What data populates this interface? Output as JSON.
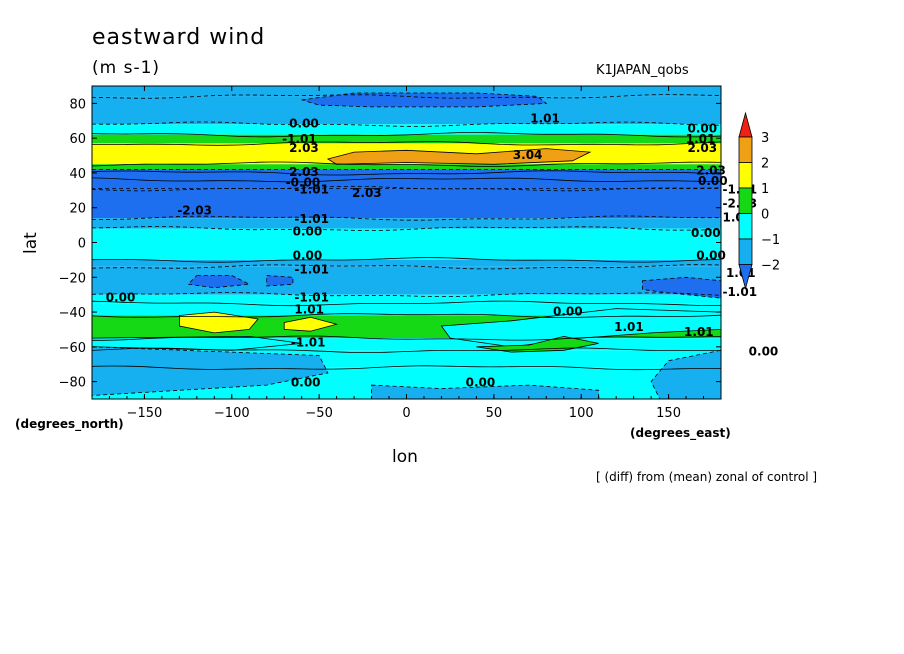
{
  "chart_data": {
    "type": "heatmap",
    "title": "eastward wind",
    "units": "(m s-1)",
    "experiment": "K1JAPAN_qobs",
    "xlabel": "lon",
    "ylabel": "lat",
    "x_units": "(degrees_east)",
    "y_units": "(degrees_north)",
    "footnote": "[ (diff) from (mean) zonal of control ]",
    "xlim": [
      -180,
      180
    ],
    "ylim": [
      -90,
      90
    ],
    "x_ticks": [
      -150,
      -100,
      -50,
      0,
      50,
      100,
      150
    ],
    "x_tick_labels": [
      "−150",
      "−100",
      "−50",
      "0",
      "50",
      "100",
      "150"
    ],
    "y_ticks": [
      80,
      60,
      40,
      20,
      0,
      -20,
      -40,
      -60,
      -80
    ],
    "y_tick_labels": [
      "80",
      "60",
      "40",
      "20",
      "0",
      "−20",
      "−40",
      "−60",
      "−80"
    ],
    "colorbar": {
      "levels": [
        -3,
        -2,
        -1,
        0,
        1,
        2,
        3
      ],
      "tick_labels": [
        "3",
        "2",
        "1",
        "0",
        "−1",
        "−2"
      ],
      "colors": [
        "#1e6ff0",
        "#16aff0",
        "#00ffff",
        "#15d915",
        "#ffff00",
        "#f0a014",
        "#f02014"
      ]
    },
    "zonal_bands": [
      {
        "lat_from": 84,
        "lat_to": 90,
        "level": -1
      },
      {
        "lat_from": 68,
        "lat_to": 84,
        "level": -1
      },
      {
        "lat_from": 62,
        "lat_to": 68,
        "level": 0
      },
      {
        "lat_from": 57,
        "lat_to": 62,
        "level": 1
      },
      {
        "lat_from": 45,
        "lat_to": 57,
        "level": 2
      },
      {
        "lat_from": 40,
        "lat_to": 45,
        "level": 1
      },
      {
        "lat_from": 36,
        "lat_to": 40,
        "level": 0
      },
      {
        "lat_from": 31,
        "lat_to": 36,
        "level": -1
      },
      {
        "lat_from": 14,
        "lat_to": 31,
        "level": -2
      },
      {
        "lat_from": 8,
        "lat_to": 14,
        "level": -1
      },
      {
        "lat_from": -10,
        "lat_to": 8,
        "level": 0
      },
      {
        "lat_from": -14,
        "lat_to": -10,
        "level": -1
      },
      {
        "lat_from": -30,
        "lat_to": -14,
        "level": -1
      },
      {
        "lat_from": -35,
        "lat_to": -30,
        "level": 0
      },
      {
        "lat_from": -42,
        "lat_to": -35,
        "level": 0
      },
      {
        "lat_from": -55,
        "lat_to": -42,
        "level": 1
      },
      {
        "lat_from": -62,
        "lat_to": -55,
        "level": 0
      },
      {
        "lat_from": -72,
        "lat_to": -62,
        "level": 0
      },
      {
        "lat_from": -90,
        "lat_to": -72,
        "level": 0
      }
    ],
    "regions": [
      {
        "level": -2,
        "points": [
          [
            -180,
            42
          ],
          [
            180,
            42
          ],
          [
            180,
            31
          ],
          [
            -180,
            31
          ]
        ]
      },
      {
        "level": -2,
        "points": [
          [
            -60,
            82
          ],
          [
            -30,
            86
          ],
          [
            40,
            86
          ],
          [
            75,
            84
          ],
          [
            80,
            80
          ],
          [
            40,
            78
          ],
          [
            -20,
            78
          ],
          [
            -50,
            79
          ]
        ]
      },
      {
        "level": 3,
        "points": [
          [
            -45,
            48
          ],
          [
            -30,
            52
          ],
          [
            0,
            53
          ],
          [
            40,
            51
          ],
          [
            80,
            54
          ],
          [
            105,
            52
          ],
          [
            95,
            47
          ],
          [
            50,
            45
          ],
          [
            0,
            46
          ],
          [
            -40,
            45
          ]
        ]
      },
      {
        "level": 2,
        "points": [
          [
            -130,
            -42
          ],
          [
            -110,
            -40
          ],
          [
            -85,
            -44
          ],
          [
            -90,
            -50
          ],
          [
            -110,
            -52
          ],
          [
            -130,
            -48
          ]
        ]
      },
      {
        "level": 2,
        "points": [
          [
            -70,
            -46
          ],
          [
            -55,
            -43
          ],
          [
            -40,
            -47
          ],
          [
            -55,
            -51
          ],
          [
            -70,
            -50
          ]
        ]
      },
      {
        "level": -2,
        "points": [
          [
            -120,
            -19
          ],
          [
            -100,
            -19
          ],
          [
            -90,
            -24
          ],
          [
            -110,
            -26
          ],
          [
            -125,
            -24
          ]
        ]
      },
      {
        "level": -2,
        "points": [
          [
            -80,
            -19
          ],
          [
            -65,
            -20
          ],
          [
            -65,
            -24
          ],
          [
            -80,
            -25
          ]
        ]
      },
      {
        "level": -2,
        "points": [
          [
            135,
            -22
          ],
          [
            160,
            -20
          ],
          [
            180,
            -22
          ],
          [
            180,
            -32
          ],
          [
            150,
            -29
          ],
          [
            135,
            -27
          ]
        ]
      },
      {
        "level": 0,
        "points": [
          [
            20,
            -48
          ],
          [
            60,
            -45
          ],
          [
            120,
            -38
          ],
          [
            180,
            -40
          ],
          [
            180,
            -50
          ],
          [
            140,
            -52
          ],
          [
            100,
            -55
          ],
          [
            60,
            -60
          ],
          [
            25,
            -55
          ]
        ]
      },
      {
        "level": 0,
        "points": [
          [
            -180,
            -55
          ],
          [
            -90,
            -54
          ],
          [
            -60,
            -58
          ],
          [
            -100,
            -62
          ],
          [
            -180,
            -60
          ]
        ]
      },
      {
        "level": 1,
        "points": [
          [
            40,
            -60
          ],
          [
            70,
            -59
          ],
          [
            90,
            -54
          ],
          [
            110,
            -58
          ],
          [
            90,
            -62
          ],
          [
            60,
            -63
          ]
        ]
      },
      {
        "level": -1,
        "points": [
          [
            -180,
            -60
          ],
          [
            -50,
            -65
          ],
          [
            -45,
            -75
          ],
          [
            -80,
            -82
          ],
          [
            -180,
            -88
          ]
        ]
      },
      {
        "level": -1,
        "points": [
          [
            150,
            -68
          ],
          [
            180,
            -62
          ],
          [
            180,
            -90
          ],
          [
            145,
            -90
          ],
          [
            140,
            -80
          ]
        ]
      },
      {
        "level": -1,
        "points": [
          [
            -20,
            -82
          ],
          [
            20,
            -84
          ],
          [
            70,
            -82
          ],
          [
            110,
            -85
          ],
          [
            110,
            -90
          ],
          [
            -20,
            -90
          ]
        ]
      }
    ],
    "contour_labels": [
      {
        "text": "0.00",
        "lon": -58,
        "lat": 69
      },
      {
        "text": "1.01",
        "lon": 80,
        "lat": 72
      },
      {
        "text": "-1.01",
        "lon": -62,
        "lat": 60
      },
      {
        "text": "2.03",
        "lon": -58,
        "lat": 55
      },
      {
        "text": "3.04",
        "lon": 70,
        "lat": 51
      },
      {
        "text": "2.03",
        "lon": -58,
        "lat": 41
      },
      {
        "text": "-0.00",
        "lon": -60,
        "lat": 35
      },
      {
        "text": "-1.01",
        "lon": -55,
        "lat": 31
      },
      {
        "text": "2.03",
        "lon": -22,
        "lat": 29
      },
      {
        "text": "-2.03",
        "lon": -122,
        "lat": 19
      },
      {
        "text": "-1.01",
        "lon": -55,
        "lat": 14
      },
      {
        "text": "0.00",
        "lon": -56,
        "lat": 7
      },
      {
        "text": "0.00",
        "lon": -56,
        "lat": -7
      },
      {
        "text": "-1.01",
        "lon": -55,
        "lat": -15
      },
      {
        "text": "0.00",
        "lon": -163,
        "lat": -31
      },
      {
        "text": "-1.01",
        "lon": -55,
        "lat": -31
      },
      {
        "text": "1.01",
        "lon": -55,
        "lat": -38
      },
      {
        "text": "0.00",
        "lon": 93,
        "lat": -39
      },
      {
        "text": "1.01",
        "lon": 128,
        "lat": -48
      },
      {
        "text": "1.01",
        "lon": 168,
        "lat": -51
      },
      {
        "text": "-1.01",
        "lon": -57,
        "lat": -57
      },
      {
        "text": "0.00",
        "lon": 205,
        "lat": -62
      },
      {
        "text": "0.00",
        "lon": -57,
        "lat": -80
      },
      {
        "text": "0.00",
        "lon": 43,
        "lat": -80
      },
      {
        "text": "0.00",
        "lon": 170,
        "lat": 66
      },
      {
        "text": "1.01",
        "lon": 169,
        "lat": 60
      },
      {
        "text": "2.03",
        "lon": 170,
        "lat": 55
      },
      {
        "text": "2.03",
        "lon": 175,
        "lat": 42
      },
      {
        "text": "0.00",
        "lon": 176,
        "lat": 36
      },
      {
        "text": "-1.01",
        "lon": 190,
        "lat": 31
      },
      {
        "text": "-2.03",
        "lon": 190,
        "lat": 23
      },
      {
        "text": "1.01",
        "lon": 190,
        "lat": 15
      },
      {
        "text": "0.00",
        "lon": 172,
        "lat": 6
      },
      {
        "text": "0.00",
        "lon": 175,
        "lat": -7
      },
      {
        "text": "1.01",
        "lon": 192,
        "lat": -17
      },
      {
        "text": "-1.01",
        "lon": 190,
        "lat": -28
      }
    ]
  }
}
